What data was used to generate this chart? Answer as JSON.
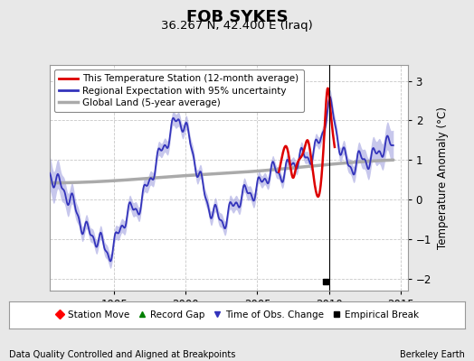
{
  "title": "FOB SYKES",
  "subtitle": "36.267 N, 42.400 E (Iraq)",
  "ylabel": "Temperature Anomaly (°C)",
  "xlabel_left": "Data Quality Controlled and Aligned at Breakpoints",
  "xlabel_right": "Berkeley Earth",
  "ylim": [
    -2.3,
    3.4
  ],
  "xlim": [
    1990.5,
    2015.5
  ],
  "yticks": [
    -2,
    -1,
    0,
    1,
    2,
    3
  ],
  "xticks": [
    1995,
    2000,
    2005,
    2010,
    2015
  ],
  "bg_color": "#e8e8e8",
  "plot_bg_color": "#ffffff",
  "grid_color": "#c8c8c8",
  "vertical_line_x": 2010.0,
  "empirical_break_x": 2009.75,
  "empirical_break_y": -2.07,
  "regional_color": "#3333bb",
  "regional_uncertainty_color": "#9999dd",
  "station_color": "#dd0000",
  "global_color": "#aaaaaa",
  "legend_items": [
    {
      "label": "This Temperature Station (12-month average)",
      "color": "#dd0000",
      "lw": 2
    },
    {
      "label": "Regional Expectation with 95% uncertainty",
      "color": "#3333bb",
      "lw": 2
    },
    {
      "label": "Global Land (5-year average)",
      "color": "#aaaaaa",
      "lw": 2
    }
  ]
}
